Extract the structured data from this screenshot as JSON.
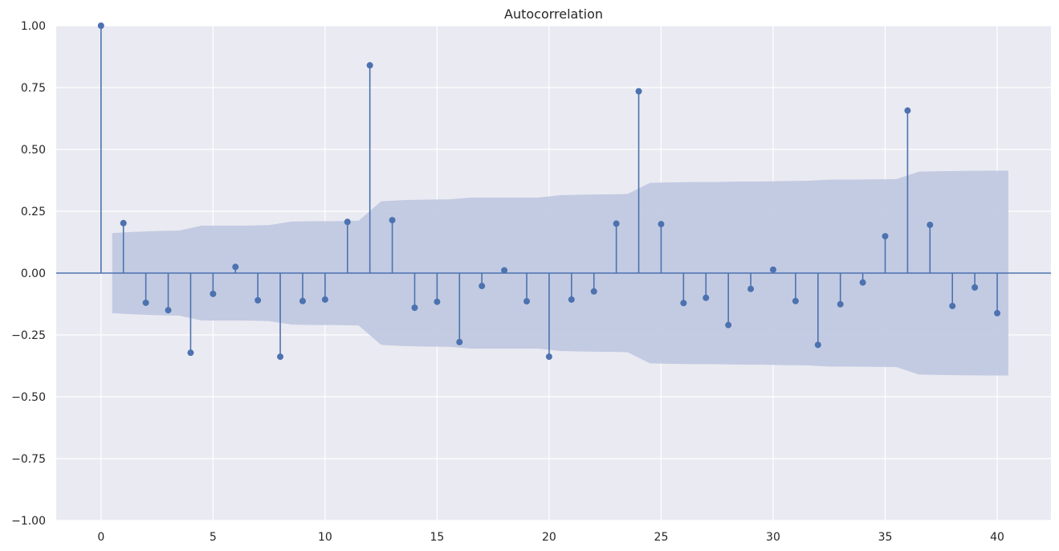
{
  "chart_data": {
    "type": "stem",
    "title": "Autocorrelation",
    "xlabel": "",
    "ylabel": "",
    "xlim": [
      -2,
      42.4
    ],
    "ylim": [
      -1.0,
      1.0
    ],
    "x_ticks": [
      0,
      5,
      10,
      15,
      20,
      25,
      30,
      35,
      40
    ],
    "x_tick_labels": [
      "0",
      "5",
      "10",
      "15",
      "20",
      "25",
      "30",
      "35",
      "40"
    ],
    "y_ticks": [
      -1.0,
      -0.75,
      -0.5,
      -0.25,
      0.0,
      0.25,
      0.5,
      0.75,
      1.0
    ],
    "y_tick_labels": [
      "−1.00",
      "−0.75",
      "−0.50",
      "−0.25",
      "0.00",
      "0.25",
      "0.50",
      "0.75",
      "1.00"
    ],
    "grid": true,
    "background_color": "#eaeaf2",
    "series_color": "#4c72b0",
    "band_color": "#c1c9e0",
    "lags": [
      0,
      1,
      2,
      3,
      4,
      5,
      6,
      7,
      8,
      9,
      10,
      11,
      12,
      13,
      14,
      15,
      16,
      17,
      18,
      19,
      20,
      21,
      22,
      23,
      24,
      25,
      26,
      27,
      28,
      29,
      30,
      31,
      32,
      33,
      34,
      35,
      36,
      37,
      38,
      39,
      40
    ],
    "values": [
      1.0,
      0.202,
      -0.12,
      -0.15,
      -0.322,
      -0.084,
      0.025,
      -0.11,
      -0.338,
      -0.113,
      -0.107,
      0.207,
      0.84,
      0.214,
      -0.14,
      -0.116,
      -0.279,
      -0.052,
      0.011,
      -0.114,
      -0.338,
      -0.107,
      -0.074,
      0.2,
      0.735,
      0.198,
      -0.121,
      -0.1,
      -0.21,
      -0.064,
      0.014,
      -0.113,
      -0.29,
      -0.126,
      -0.038,
      0.149,
      0.657,
      0.195,
      -0.133,
      -0.058,
      -0.162
    ],
    "confidence_band": {
      "lags": [
        0.5,
        1.5,
        2.5,
        3.5,
        4.5,
        5.5,
        6.5,
        7.5,
        8.5,
        9.5,
        10.5,
        11.5,
        12.5,
        13.5,
        14.5,
        15.5,
        16.5,
        17.5,
        18.5,
        19.5,
        20.5,
        21.5,
        22.5,
        23.5,
        24.5,
        25.5,
        26.5,
        27.5,
        28.5,
        29.5,
        30.5,
        31.5,
        32.5,
        33.5,
        34.5,
        35.5,
        36.5,
        37.5,
        38.5,
        39.5,
        40.5
      ],
      "upper": [
        0.162,
        0.167,
        0.17,
        0.172,
        0.192,
        0.192,
        0.192,
        0.194,
        0.208,
        0.21,
        0.21,
        0.212,
        0.29,
        0.295,
        0.297,
        0.298,
        0.305,
        0.305,
        0.305,
        0.305,
        0.315,
        0.317,
        0.318,
        0.32,
        0.365,
        0.367,
        0.368,
        0.368,
        0.37,
        0.37,
        0.372,
        0.373,
        0.378,
        0.378,
        0.379,
        0.38,
        0.41,
        0.412,
        0.413,
        0.414,
        0.414
      ]
    }
  }
}
